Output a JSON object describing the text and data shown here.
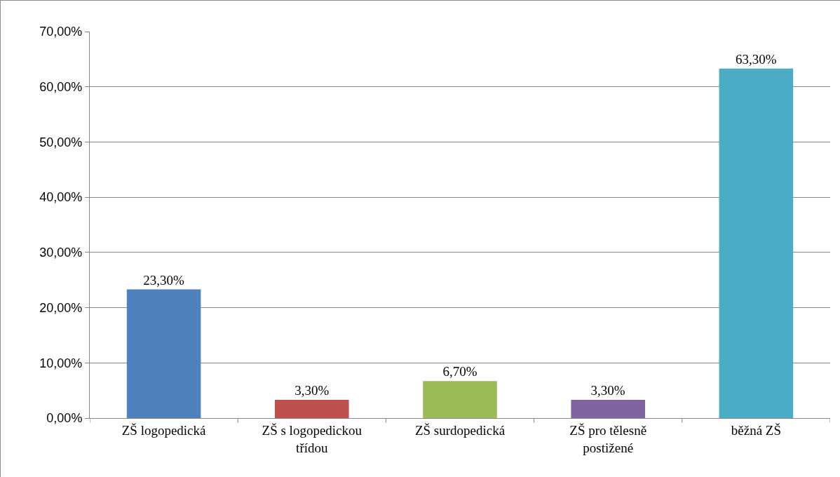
{
  "chart_data": {
    "type": "bar",
    "categories": [
      "ZŠ logopedická",
      "ZŠ s logopedickou třídou",
      "ZŠ surdopedická",
      "ZŠ pro tělesně postižené",
      "běžná ZŠ"
    ],
    "values": [
      23.3,
      3.3,
      6.7,
      3.3,
      63.3
    ],
    "colors": [
      "#4f81bd",
      "#c0504d",
      "#9bbb59",
      "#8064a2",
      "#4bacc6"
    ],
    "value_labels": [
      "23,30%",
      "3,30%",
      "6,70%",
      "3,30%",
      "63,30%"
    ],
    "ylim": [
      0,
      70
    ],
    "yticks": [
      {
        "value": 0,
        "label": "0,00%"
      },
      {
        "value": 10,
        "label": "10,00%"
      },
      {
        "value": 20,
        "label": "20,00%"
      },
      {
        "value": 30,
        "label": "30,00%"
      },
      {
        "value": 40,
        "label": "40,00%"
      },
      {
        "value": 50,
        "label": "50,00%"
      },
      {
        "value": 60,
        "label": "60,00%"
      },
      {
        "value": 70,
        "label": "70,00%"
      }
    ],
    "grid": "y"
  }
}
